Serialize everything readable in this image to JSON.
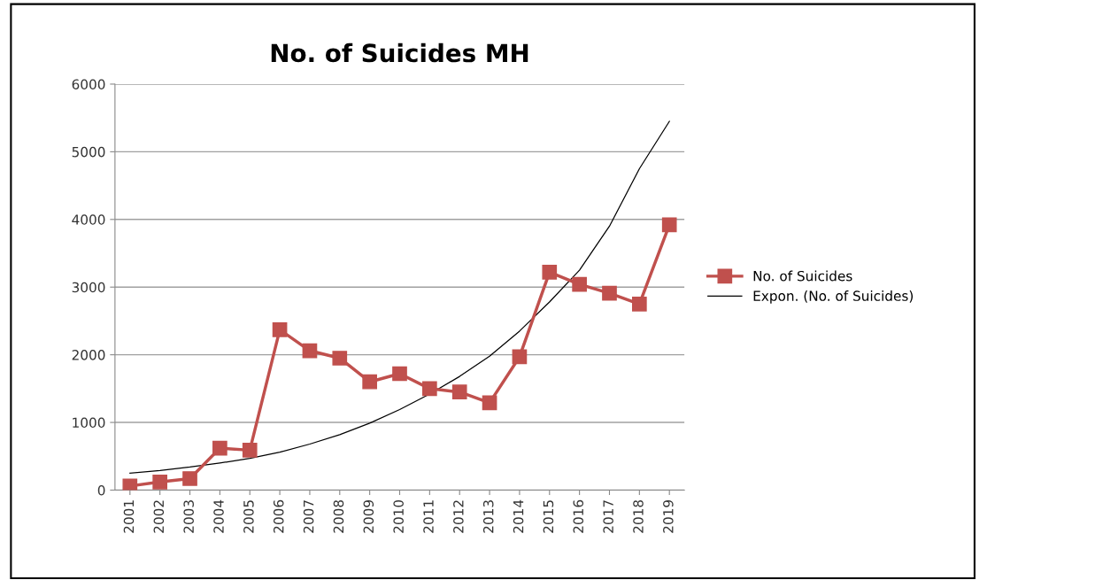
{
  "chart_data": {
    "type": "line",
    "title": "No. of Suicides MH",
    "categories": [
      "2001",
      "2002",
      "2003",
      "2004",
      "2005",
      "2006",
      "2007",
      "2008",
      "2009",
      "2010",
      "2011",
      "2012",
      "2013",
      "2014",
      "2015",
      "2016",
      "2017",
      "2018",
      "2019"
    ],
    "series": [
      {
        "name": "No. of Suicides",
        "color": "#c0504d",
        "marker": "square",
        "values": [
          60,
          120,
          170,
          620,
          590,
          2370,
          2060,
          1950,
          1600,
          1720,
          1500,
          1450,
          1290,
          1970,
          3220,
          3040,
          2910,
          2750,
          3920
        ]
      },
      {
        "name": "Expon. (No. of Suicides)",
        "color": "#000000",
        "marker": "none",
        "values": [
          250,
          290,
          340,
          400,
          470,
          560,
          680,
          820,
          990,
          1190,
          1420,
          1680,
          1980,
          2350,
          2780,
          3250,
          3900,
          4750,
          5450
        ]
      }
    ],
    "ylim": [
      0,
      6000
    ],
    "yticks": [
      0,
      1000,
      2000,
      3000,
      4000,
      5000,
      6000
    ],
    "grid": "y",
    "legend": "right"
  }
}
